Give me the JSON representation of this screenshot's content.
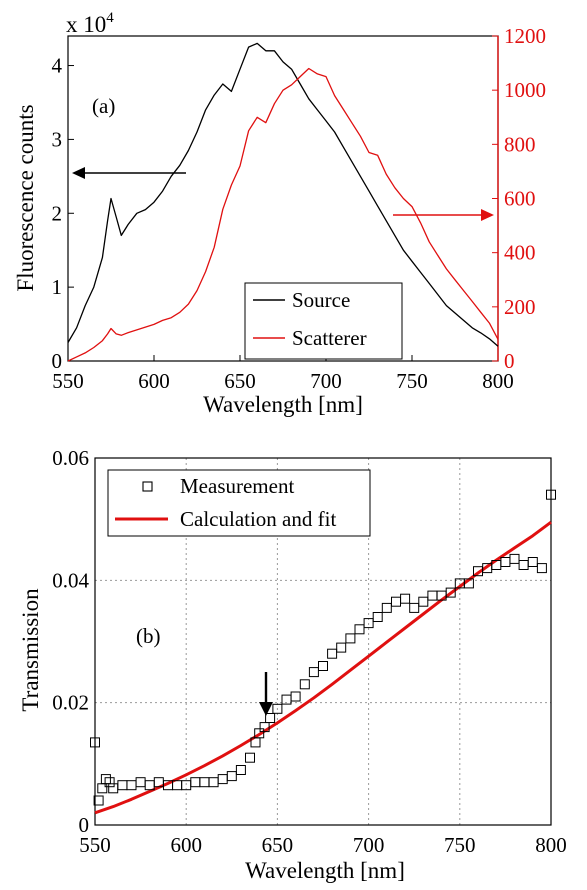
{
  "chart_data": [
    {
      "type": "line",
      "panel_label": "(a)",
      "xlabel": "Wavelength [nm]",
      "ylabel": "Fluorescence counts",
      "y_multiplier": "x 10",
      "y_multiplier_exp": "4",
      "xlim": [
        550,
        800
      ],
      "ylim_left": [
        0,
        4.4
      ],
      "ylim_right": [
        0,
        1200
      ],
      "x_ticks": [
        "550",
        "600",
        "650",
        "700",
        "750",
        "800"
      ],
      "y_ticks_left": [
        "0",
        "1",
        "2",
        "3",
        "4"
      ],
      "y_ticks_right": [
        "0",
        "200",
        "400",
        "600",
        "800",
        "1000",
        "1200"
      ],
      "grid": false,
      "legend_position": "bottom-right",
      "colors": {
        "source": "#000000",
        "scatterer": "#e01010"
      },
      "series": [
        {
          "name": "Source",
          "axis": "left",
          "x": [
            550,
            555,
            560,
            565,
            570,
            573,
            575,
            578,
            581,
            585,
            590,
            595,
            600,
            605,
            610,
            615,
            620,
            625,
            630,
            635,
            640,
            645,
            650,
            655,
            660,
            665,
            670,
            675,
            680,
            685,
            690,
            695,
            700,
            705,
            710,
            715,
            720,
            725,
            730,
            735,
            740,
            745,
            750,
            755,
            760,
            765,
            770,
            775,
            780,
            785,
            790,
            795,
            800
          ],
          "values": [
            0.25,
            0.45,
            0.75,
            1.0,
            1.4,
            1.9,
            2.2,
            1.95,
            1.7,
            1.85,
            2.0,
            2.05,
            2.15,
            2.3,
            2.5,
            2.65,
            2.85,
            3.1,
            3.4,
            3.6,
            3.75,
            3.65,
            3.95,
            4.25,
            4.3,
            4.2,
            4.2,
            4.05,
            3.95,
            3.75,
            3.55,
            3.4,
            3.25,
            3.1,
            2.9,
            2.7,
            2.5,
            2.3,
            2.1,
            1.9,
            1.7,
            1.5,
            1.35,
            1.2,
            1.05,
            0.9,
            0.75,
            0.65,
            0.55,
            0.45,
            0.38,
            0.3,
            0.2
          ]
        },
        {
          "name": "Scatterer",
          "axis": "right",
          "x": [
            550,
            555,
            560,
            565,
            570,
            573,
            575,
            578,
            581,
            585,
            590,
            595,
            600,
            605,
            610,
            615,
            620,
            625,
            630,
            635,
            640,
            645,
            650,
            655,
            660,
            665,
            670,
            675,
            680,
            685,
            690,
            695,
            700,
            705,
            710,
            715,
            720,
            725,
            730,
            735,
            740,
            745,
            750,
            755,
            760,
            765,
            770,
            775,
            780,
            785,
            790,
            795,
            800
          ],
          "values": [
            0,
            15,
            30,
            50,
            75,
            100,
            120,
            100,
            95,
            105,
            115,
            125,
            135,
            150,
            160,
            180,
            210,
            260,
            330,
            420,
            560,
            650,
            720,
            850,
            900,
            880,
            950,
            1000,
            1020,
            1050,
            1080,
            1060,
            1050,
            980,
            930,
            880,
            830,
            770,
            760,
            690,
            640,
            600,
            570,
            510,
            440,
            390,
            340,
            300,
            260,
            220,
            180,
            140,
            80
          ]
        }
      ]
    },
    {
      "type": "scatter",
      "panel_label": "(b)",
      "xlabel": "Wavelength [nm]",
      "ylabel": "Transmission",
      "xlim": [
        550,
        800
      ],
      "ylim": [
        0,
        0.06
      ],
      "x_ticks": [
        "550",
        "600",
        "650",
        "700",
        "750",
        "800"
      ],
      "y_ticks": [
        "0",
        "0.02",
        "0.04",
        "0.06"
      ],
      "grid": true,
      "legend_position": "top-left",
      "colors": {
        "measurement": "#000000",
        "fit": "#e01010"
      },
      "series": [
        {
          "name": "Measurement",
          "marker": "open-square",
          "x": [
            550,
            552,
            554,
            556,
            558,
            560,
            565,
            570,
            575,
            580,
            585,
            590,
            595,
            600,
            605,
            610,
            615,
            620,
            625,
            630,
            635,
            638,
            640,
            643,
            646,
            650,
            655,
            660,
            665,
            670,
            675,
            680,
            685,
            690,
            695,
            700,
            705,
            710,
            715,
            720,
            725,
            730,
            735,
            740,
            745,
            750,
            755,
            760,
            765,
            770,
            775,
            780,
            785,
            790,
            795,
            800
          ],
          "values": [
            0.0135,
            0.004,
            0.006,
            0.0075,
            0.007,
            0.006,
            0.0065,
            0.0065,
            0.007,
            0.0065,
            0.007,
            0.0065,
            0.0065,
            0.0065,
            0.007,
            0.007,
            0.007,
            0.0075,
            0.008,
            0.009,
            0.011,
            0.0135,
            0.015,
            0.016,
            0.0175,
            0.019,
            0.0205,
            0.021,
            0.023,
            0.025,
            0.026,
            0.028,
            0.029,
            0.0305,
            0.032,
            0.033,
            0.034,
            0.0355,
            0.0365,
            0.037,
            0.0355,
            0.0365,
            0.0375,
            0.0375,
            0.038,
            0.0395,
            0.0395,
            0.0415,
            0.042,
            0.0425,
            0.043,
            0.0435,
            0.0425,
            0.043,
            0.042,
            0.054
          ]
        },
        {
          "name": "Calculation and fit",
          "marker": "line",
          "x": [
            550,
            560,
            570,
            580,
            590,
            600,
            610,
            620,
            630,
            640,
            650,
            660,
            670,
            680,
            690,
            700,
            710,
            720,
            730,
            740,
            750,
            760,
            770,
            780,
            790,
            800
          ],
          "values": [
            0.002,
            0.003,
            0.0042,
            0.0055,
            0.0068,
            0.0082,
            0.0097,
            0.0113,
            0.013,
            0.0148,
            0.0167,
            0.0187,
            0.0208,
            0.023,
            0.0253,
            0.0276,
            0.0299,
            0.0322,
            0.0345,
            0.0368,
            0.039,
            0.0412,
            0.0433,
            0.0453,
            0.0473,
            0.0495
          ]
        }
      ],
      "annotation": {
        "type": "arrow",
        "x": 640,
        "direction": "down"
      }
    }
  ]
}
